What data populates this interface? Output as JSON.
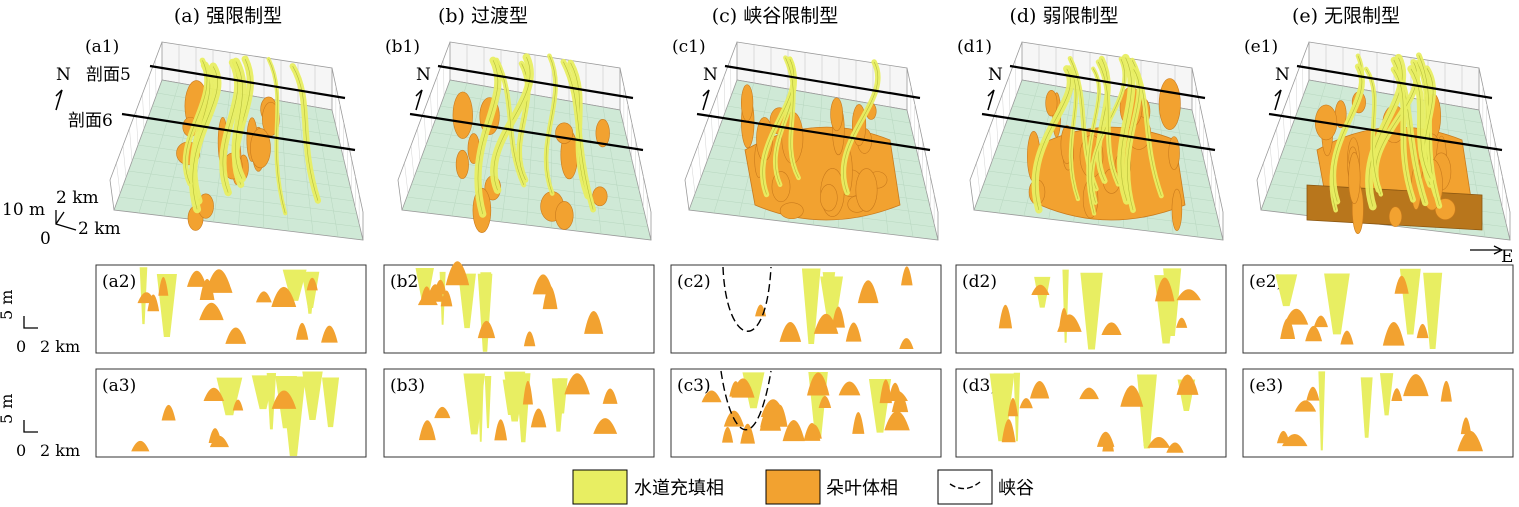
{
  "columns": [
    {
      "title": "(a) 强限制型",
      "block": "(a1)",
      "sec1": "(a2)",
      "sec2": "(a3)"
    },
    {
      "title": "(b) 过渡型",
      "block": "(b1)",
      "sec1": "(b2)",
      "sec2": "(b3)"
    },
    {
      "title": "(c) 峡谷限制型",
      "block": "(c1)",
      "sec1": "(c2)",
      "sec2": "(c3)"
    },
    {
      "title": "(d) 弱限制型",
      "block": "(d1)",
      "sec1": "(d2)",
      "sec2": "(d3)"
    },
    {
      "title": "(e) 无限制型",
      "block": "(e1)",
      "sec1": "(e2)",
      "sec2": "(e3)"
    }
  ],
  "labels": {
    "north": "N",
    "east": "E",
    "profile5": "剖面5",
    "profile6": "剖面6",
    "scale3d_vertical": "10 m",
    "scale3d_km_a": "2 km",
    "scale3d_km_b": "2 km",
    "scale3d_zero": "0",
    "scale2d_vertical": "5 m",
    "scale2d_zero": "0",
    "scale2d_km": "2 km"
  },
  "legend": {
    "channel": "水道充填相",
    "lobe": "朵叶体相",
    "canyon": "峡谷"
  },
  "colors": {
    "channel": "#e8ee62",
    "lobe": "#f2a230",
    "lobe_dark": "#c97a1c",
    "base": "#cfe9d6",
    "grid": "#9a9a9a"
  }
}
